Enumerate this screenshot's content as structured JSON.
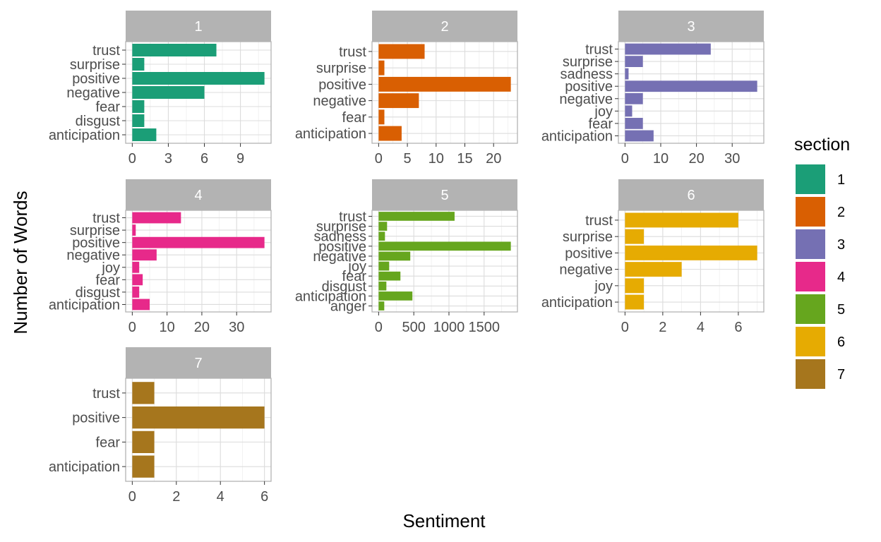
{
  "chart_data": {
    "type": "bar",
    "orientation": "horizontal",
    "facet_by": "section",
    "xlabel": "Sentiment",
    "ylabel": "Number of Words",
    "grid": true,
    "legend": {
      "title": "section",
      "placement": "right",
      "entries": [
        {
          "label": "1",
          "color": "#1b9e77"
        },
        {
          "label": "2",
          "color": "#d95f02"
        },
        {
          "label": "3",
          "color": "#7570b3"
        },
        {
          "label": "4",
          "color": "#e7298a"
        },
        {
          "label": "5",
          "color": "#66a61e"
        },
        {
          "label": "6",
          "color": "#e6ab02"
        },
        {
          "label": "7",
          "color": "#a6761d"
        }
      ]
    },
    "panels": [
      {
        "section": "1",
        "color": "#1b9e77",
        "categories": [
          "trust",
          "surprise",
          "positive",
          "negative",
          "fear",
          "disgust",
          "anticipation"
        ],
        "values": [
          7,
          1,
          11,
          6,
          1,
          1,
          2
        ],
        "xlim": [
          -0.55,
          11.55
        ],
        "xticks": [
          0,
          3,
          6,
          9
        ],
        "xtick_labels": [
          "0",
          "3",
          "6",
          "9"
        ]
      },
      {
        "section": "2",
        "color": "#d95f02",
        "categories": [
          "trust",
          "surprise",
          "positive",
          "negative",
          "fear",
          "anticipation"
        ],
        "values": [
          8,
          1,
          23,
          7,
          1,
          4
        ],
        "xlim": [
          -1.15,
          24.15
        ],
        "xticks": [
          0,
          5,
          10,
          15,
          20
        ],
        "xtick_labels": [
          "0",
          "5",
          "10",
          "15",
          "20"
        ]
      },
      {
        "section": "3",
        "color": "#7570b3",
        "categories": [
          "trust",
          "surprise",
          "sadness",
          "positive",
          "negative",
          "joy",
          "fear",
          "anticipation"
        ],
        "values": [
          24,
          5,
          1,
          37,
          5,
          2,
          5,
          8
        ],
        "xlim": [
          -1.85,
          38.85
        ],
        "xticks": [
          0,
          10,
          20,
          30
        ],
        "xtick_labels": [
          "0",
          "10",
          "20",
          "30"
        ]
      },
      {
        "section": "4",
        "color": "#e7298a",
        "categories": [
          "trust",
          "surprise",
          "positive",
          "negative",
          "joy",
          "fear",
          "disgust",
          "anticipation"
        ],
        "values": [
          14,
          1,
          38,
          7,
          2,
          3,
          2,
          5
        ],
        "xlim": [
          -1.9,
          39.9
        ],
        "xticks": [
          0,
          10,
          20,
          30
        ],
        "xtick_labels": [
          "0",
          "10",
          "20",
          "30"
        ]
      },
      {
        "section": "5",
        "color": "#66a61e",
        "categories": [
          "trust",
          "surprise",
          "sadness",
          "positive",
          "negative",
          "joy",
          "fear",
          "disgust",
          "anticipation",
          "anger"
        ],
        "values": [
          1080,
          120,
          90,
          1880,
          450,
          150,
          310,
          110,
          480,
          80
        ],
        "xlim": [
          -94,
          1974
        ],
        "xticks": [
          0,
          500,
          1000,
          1500
        ],
        "xtick_labels": [
          "0",
          "500",
          "1000",
          "1500"
        ]
      },
      {
        "section": "6",
        "color": "#e6ab02",
        "categories": [
          "trust",
          "surprise",
          "positive",
          "negative",
          "joy",
          "anticipation"
        ],
        "values": [
          6,
          1,
          7,
          3,
          1,
          1
        ],
        "xlim": [
          -0.35,
          7.35
        ],
        "xticks": [
          0,
          2,
          4,
          6
        ],
        "xtick_labels": [
          "0",
          "2",
          "4",
          "6"
        ]
      },
      {
        "section": "7",
        "color": "#a6761d",
        "categories": [
          "trust",
          "positive",
          "fear",
          "anticipation"
        ],
        "values": [
          1,
          6,
          1,
          1
        ],
        "xlim": [
          -0.3,
          6.3
        ],
        "xticks": [
          0,
          2,
          4,
          6
        ],
        "xtick_labels": [
          "0",
          "2",
          "4",
          "6"
        ]
      }
    ]
  }
}
